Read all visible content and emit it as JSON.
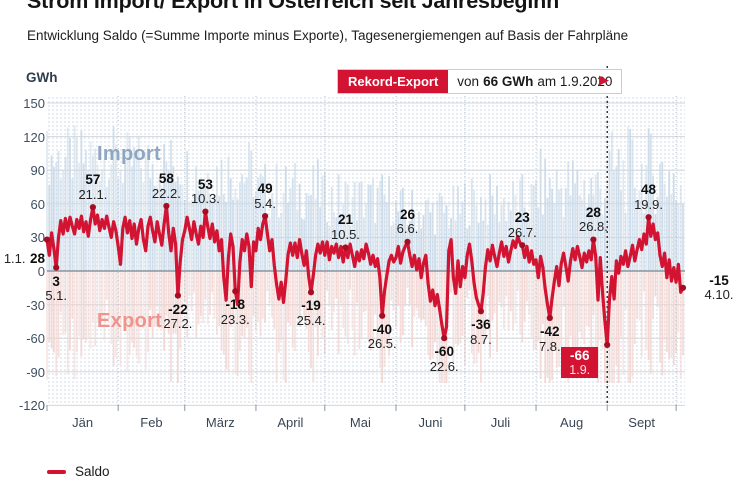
{
  "header": {
    "title": "Strom Import/ Export in Österreich seit Jahresbeginn",
    "subtitle": "Entwicklung Saldo (=Summe Importe minus Exporte), Tagesenergiemengen auf Basis der Fahrpläne"
  },
  "badge": {
    "label": "Rekord-Export",
    "prefix": "von",
    "value": "66 GWh",
    "suffix": "am 1.9.2020",
    "arrow": "▶"
  },
  "axis": {
    "unit": "GWh"
  },
  "area_labels": {
    "import": "Import",
    "export": "Export"
  },
  "legend": {
    "saldo_label": "Saldo"
  },
  "colors": {
    "saldo_red": "#d21331",
    "dot_red": "#a50d22",
    "badge_red": "#d21331",
    "import_bar": "#c9d9e8",
    "export_bar": "#f2d5d1",
    "grid": "#d2d7dc",
    "zero_line": "#8b959e",
    "month_line": "#b6bfc8",
    "record_line": "#2b2b2b"
  },
  "chart_data": {
    "type": "line",
    "title": "Strom Import/Export in Österreich seit Jahresbeginn",
    "ylabel": "GWh",
    "ylim": [
      -120,
      150
    ],
    "yticks": [
      150,
      120,
      90,
      60,
      30,
      0,
      -30,
      -60,
      -90,
      -120
    ],
    "grid": true,
    "legend_position": "bottom-left",
    "start_date": "1.1.2020",
    "month_labels": [
      "Jän",
      "Feb",
      "März",
      "April",
      "Mai",
      "Juni",
      "Juli",
      "Aug",
      "Sept"
    ],
    "month_day_counts": [
      31,
      29,
      31,
      30,
      31,
      30,
      31,
      31,
      30,
      31
    ],
    "series": [
      {
        "name": "Saldo",
        "values": [
          28,
          14,
          34,
          20,
          3,
          30,
          45,
          33,
          47,
          36,
          48,
          40,
          33,
          46,
          38,
          49,
          35,
          44,
          31,
          46,
          57,
          42,
          50,
          36,
          46,
          38,
          49,
          39,
          30,
          44,
          36,
          22,
          6,
          38,
          48,
          34,
          45,
          29,
          42,
          24,
          38,
          46,
          28,
          18,
          40,
          48,
          36,
          26,
          44,
          33,
          23,
          42,
          58,
          34,
          18,
          38,
          24,
          -22,
          8,
          28,
          36,
          48,
          38,
          28,
          44,
          33,
          24,
          40,
          30,
          53,
          40,
          29,
          42,
          26,
          36,
          18,
          28,
          -6,
          -26,
          12,
          33,
          22,
          -18,
          -30,
          8,
          28,
          18,
          33,
          22,
          -14,
          26,
          18,
          38,
          28,
          42,
          49,
          33,
          18,
          28,
          5,
          -12,
          -25,
          -10,
          -28,
          -8,
          15,
          25,
          14,
          25,
          12,
          28,
          15,
          5,
          18,
          -5,
          -19,
          -4,
          14,
          24,
          16,
          26,
          14,
          26,
          10,
          22,
          16,
          24,
          12,
          22,
          8,
          21,
          12,
          24,
          14,
          4,
          17,
          9,
          19,
          11,
          24,
          16,
          6,
          14,
          4,
          11,
          -6,
          -40,
          -18,
          -4,
          9,
          14,
          8,
          12,
          22,
          7,
          17,
          22,
          26,
          14,
          4,
          14,
          1,
          11,
          -6,
          7,
          14,
          -11,
          -27,
          -17,
          -31,
          -21,
          -34,
          -48,
          -60,
          -50,
          18,
          28,
          -6,
          -20,
          9,
          -14,
          4,
          -6,
          14,
          24,
          9,
          -11,
          -24,
          -30,
          -36,
          -20,
          4,
          19,
          9,
          23,
          13,
          4,
          16,
          26,
          13,
          22,
          8,
          18,
          27,
          21,
          31,
          25,
          23,
          12,
          22,
          8,
          18,
          6,
          10,
          -6,
          13,
          3,
          -16,
          -30,
          -42,
          -24,
          -9,
          4,
          -13,
          7,
          16,
          4,
          -9,
          9,
          20,
          10,
          22,
          13,
          3,
          16,
          8,
          18,
          10,
          28,
          13,
          -26,
          12,
          -20,
          -45,
          -66,
          -25,
          -5,
          -25,
          9,
          -2,
          13,
          6,
          18,
          4,
          13,
          23,
          9,
          19,
          28,
          19,
          33,
          24,
          48,
          31,
          42,
          28,
          34,
          14,
          4,
          16,
          -6,
          10,
          -9,
          3,
          -10,
          6,
          -19,
          -15
        ]
      }
    ],
    "annotations": [
      {
        "value": 28,
        "date": "1.1.",
        "day": 0,
        "placement": "left"
      },
      {
        "value": 3,
        "date": "5.1.",
        "day": 4,
        "placement": "below"
      },
      {
        "value": 57,
        "date": "21.1.",
        "day": 20,
        "placement": "above"
      },
      {
        "value": 58,
        "date": "22.2.",
        "day": 52,
        "placement": "above"
      },
      {
        "value": -22,
        "date": "27.2.",
        "day": 57,
        "placement": "below"
      },
      {
        "value": 53,
        "date": "10.3.",
        "day": 69,
        "placement": "above"
      },
      {
        "value": -18,
        "date": "23.3.",
        "day": 82,
        "placement": "below"
      },
      {
        "value": 49,
        "date": "5.4.",
        "day": 95,
        "placement": "above"
      },
      {
        "value": -19,
        "date": "25.4.",
        "day": 115,
        "placement": "below"
      },
      {
        "value": 21,
        "date": "10.5.",
        "day": 130,
        "placement": "above"
      },
      {
        "value": -40,
        "date": "26.5.",
        "day": 146,
        "placement": "below"
      },
      {
        "value": 26,
        "date": "6.6.",
        "day": 157,
        "placement": "above"
      },
      {
        "value": -60,
        "date": "22.6.",
        "day": 173,
        "placement": "below"
      },
      {
        "value": -36,
        "date": "8.7.",
        "day": 189,
        "placement": "below"
      },
      {
        "value": 23,
        "date": "26.7.",
        "day": 207,
        "placement": "above"
      },
      {
        "value": -42,
        "date": "7.8.",
        "day": 219,
        "placement": "below"
      },
      {
        "value": 28,
        "date": "26.8.",
        "day": 238,
        "placement": "above"
      },
      {
        "value": -66,
        "date": "1.9.",
        "day": 244,
        "placement": "box"
      },
      {
        "value": 48,
        "date": "19.9.",
        "day": 262,
        "placement": "above"
      },
      {
        "value": -15,
        "date": "4.10.",
        "day": 277,
        "placement": "right"
      }
    ],
    "record_marker": {
      "day": 244,
      "label": "Rekord-Export von 66 GWh am 1.9.2020"
    },
    "import_bar_envelope": {
      "base": [
        75,
        70,
        60,
        45,
        40,
        32,
        38,
        45,
        50,
        45
      ],
      "amp": [
        55,
        55,
        60,
        55,
        50,
        45,
        50,
        65,
        80,
        40
      ]
    }
  }
}
